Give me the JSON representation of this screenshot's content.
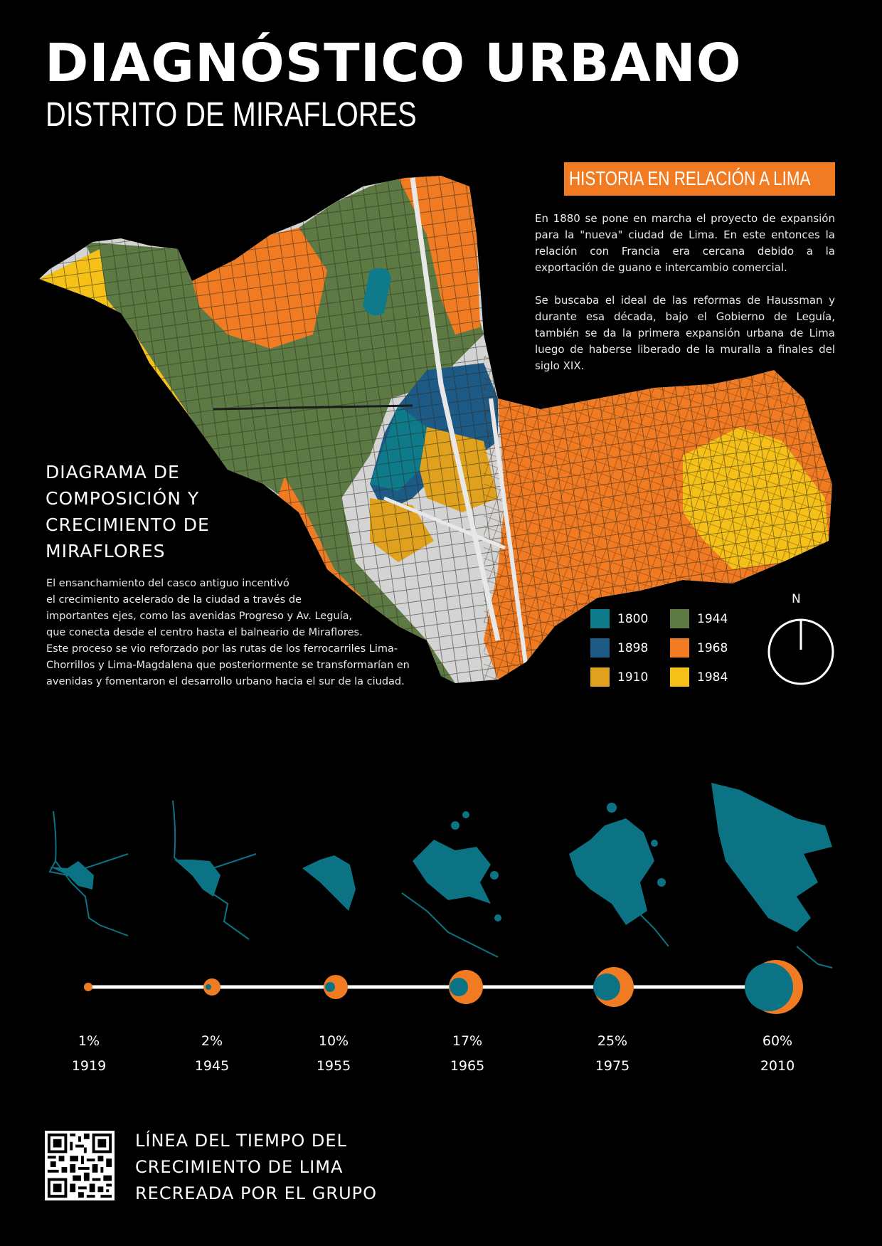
{
  "header": {
    "title": "DIAGNÓSTICO URBANO",
    "subtitle": "DISTRITO DE MIRAFLORES"
  },
  "history": {
    "heading": "HISTORIA EN RELACIÓN A LIMA",
    "paragraph1": "En 1880 se pone en marcha el proyecto de expansión para la \"nueva\" ciudad de Lima. En este entonces la relación con Francia era cercana debido a la exportación de guano e intercambio comercial.",
    "paragraph2": "Se buscaba el ideal de las reformas de Haussman y durante esa década, bajo el Gobierno de Leguía, también se da la primera expansión urbana de Lima luego de haberse liberado de la muralla a finales del siglo XIX."
  },
  "diagram": {
    "title_lines": [
      "DIAGRAMA DE",
      "COMPOSICIÓN Y",
      "CRECIMIENTO DE",
      "MIRAFLORES"
    ],
    "body_lines": [
      "El ensanchamiento del casco antiguo incentivó",
      "el crecimiento acelerado  de la ciudad a través de",
      "importantes ejes, como las avenidas Progreso y Av. Leguía,",
      "que conecta desde el centro hasta el balneario de Miraflores.",
      "Este proceso se vio reforzado por las rutas de los ferrocarriles Lima-",
      "Chorrillos y Lima-Magdalena que posteriormente se transformarían en",
      "avenidas y fomentaron el desarrollo urbano hacia el sur de la ciudad."
    ]
  },
  "legend": {
    "items": [
      {
        "label": "1800",
        "color": "#0e7a8a"
      },
      {
        "label": "1898",
        "color": "#1d5a86"
      },
      {
        "label": "1910",
        "color": "#e0a21e"
      },
      {
        "label": "1944",
        "color": "#5d7a44"
      },
      {
        "label": "1968",
        "color": "#f07b22"
      },
      {
        "label": "1984",
        "color": "#f5c118"
      }
    ]
  },
  "compass": {
    "label": "N"
  },
  "timeline": {
    "entries": [
      {
        "percent": "1%",
        "year": "1919"
      },
      {
        "percent": "2%",
        "year": "1945"
      },
      {
        "percent": "10%",
        "year": "1955"
      },
      {
        "percent": "17%",
        "year": "1965"
      },
      {
        "percent": "25%",
        "year": "1975"
      },
      {
        "percent": "60%",
        "year": "2010"
      }
    ],
    "title_lines": [
      "LÍNEA DEL TIEMPO DEL",
      "CRECIMIENTO DE LIMA",
      "RECREADA POR EL GRUPO"
    ]
  },
  "colors": {
    "accent": "#f07b22",
    "teal": "#0b7383",
    "background": "#000000"
  }
}
